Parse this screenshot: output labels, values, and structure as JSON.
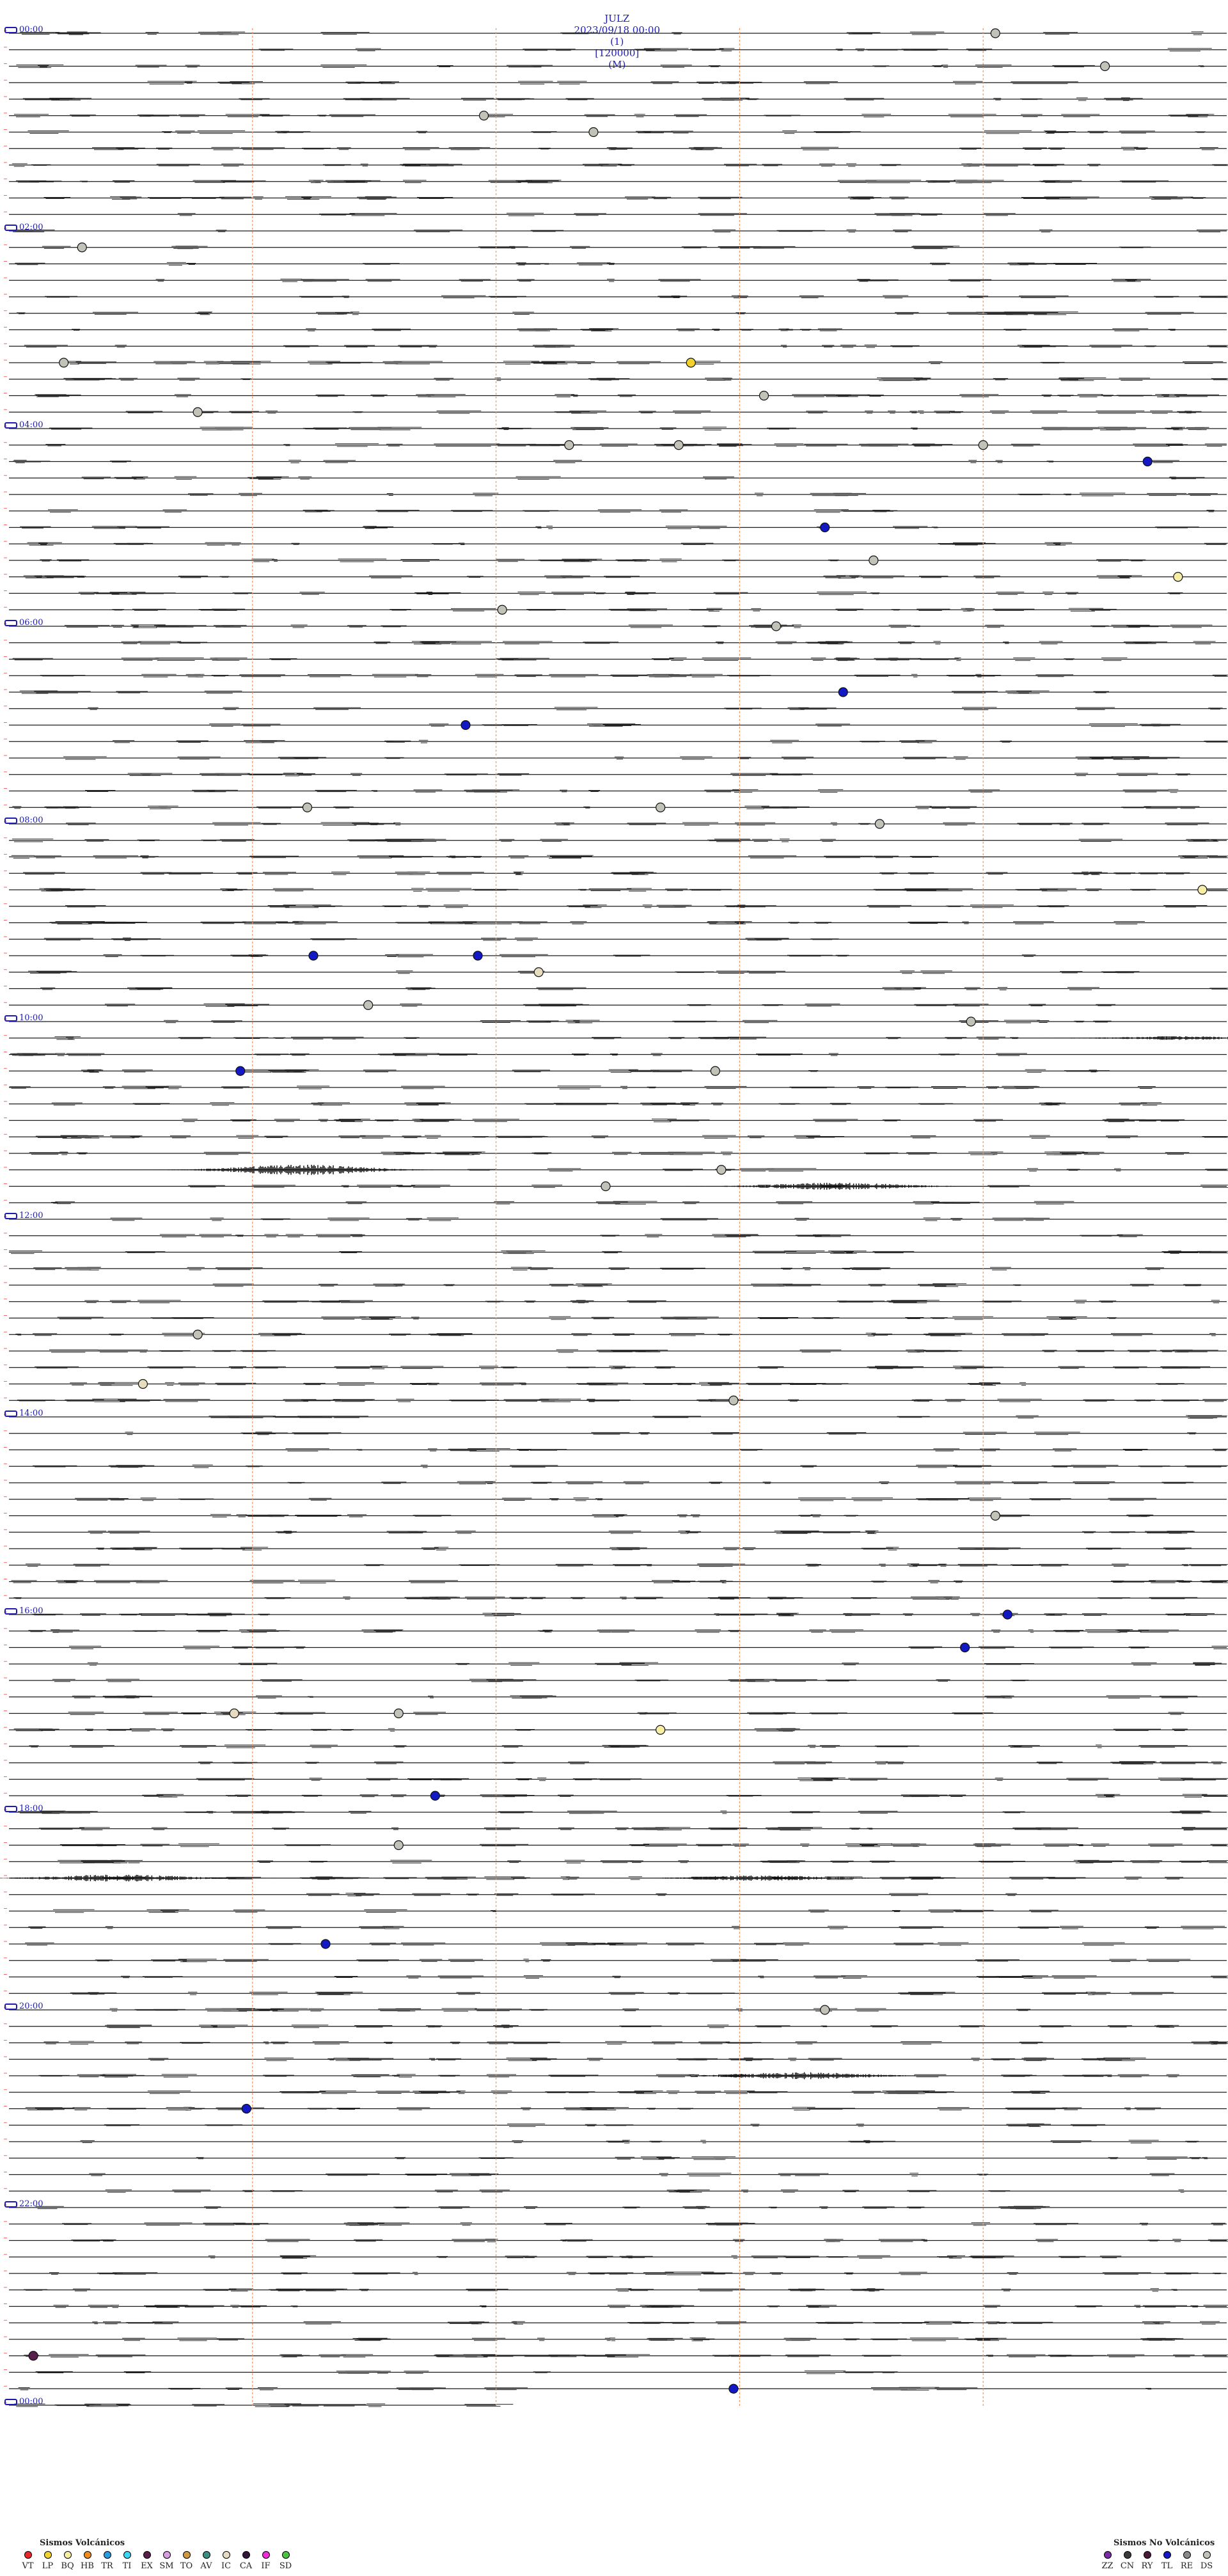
{
  "header": {
    "station": "JULZ",
    "datetime": "2023/09/18 00:00",
    "channel": "(1)",
    "scale": "[120000]",
    "unit": "(M)"
  },
  "chart_data": {
    "type": "helicorder",
    "trace_count": 144,
    "minutes_per_trace": 10,
    "time_labels": [
      {
        "trace": 0,
        "text": "00:00",
        "color": "#1b1bb4"
      },
      {
        "trace": 12,
        "text": "02:00",
        "color": "#1b1bb4"
      },
      {
        "trace": 24,
        "text": "04:00",
        "color": "#1b1bb4"
      },
      {
        "trace": 36,
        "text": "06:00",
        "color": "#1b1bb4"
      },
      {
        "trace": 48,
        "text": "08:00",
        "color": "#1b1bb4"
      },
      {
        "trace": 60,
        "text": "10:00",
        "color": "#1b1bb4"
      },
      {
        "trace": 72,
        "text": "12:00",
        "color": "#1b1bb4"
      },
      {
        "trace": 84,
        "text": "14:00",
        "color": "#1b1bb4"
      },
      {
        "trace": 96,
        "text": "16:00",
        "color": "#1b1bb4"
      },
      {
        "trace": 108,
        "text": "18:00",
        "color": "#1b1bb4"
      },
      {
        "trace": 120,
        "text": "20:00",
        "color": "#1b1bb4"
      },
      {
        "trace": 132,
        "text": "22:00",
        "color": "#1b1bb4"
      },
      {
        "trace": 144,
        "text": "00:00",
        "color": "#1b1bb4"
      }
    ],
    "minute_markers": [
      2,
      4,
      6,
      8
    ],
    "bursts": [
      {
        "trace": 69,
        "minute": 2.4,
        "amplitude": 6
      },
      {
        "trace": 70,
        "minute": 6.8,
        "amplitude": 4
      },
      {
        "trace": 112,
        "minute": 0.9,
        "amplitude": 4
      },
      {
        "trace": 112,
        "minute": 6.2,
        "amplitude": 3
      },
      {
        "trace": 124,
        "minute": 6.5,
        "amplitude": 4
      },
      {
        "trace": 61,
        "minute": 9.6,
        "amplitude": 2
      }
    ],
    "events": [
      {
        "trace": 0,
        "minute": 8.1,
        "class": "DS"
      },
      {
        "trace": 2,
        "minute": 9.0,
        "class": "DS"
      },
      {
        "trace": 5,
        "minute": 3.9,
        "class": "DS"
      },
      {
        "trace": 6,
        "minute": 4.8,
        "class": "DS"
      },
      {
        "trace": 13,
        "minute": 0.6,
        "class": "DS"
      },
      {
        "trace": 20,
        "minute": 0.45,
        "class": "DS"
      },
      {
        "trace": 20,
        "minute": 5.6,
        "class": "LP"
      },
      {
        "trace": 22,
        "minute": 6.2,
        "class": "DS"
      },
      {
        "trace": 23,
        "minute": 1.55,
        "class": "DS"
      },
      {
        "trace": 25,
        "minute": 4.6,
        "class": "DS"
      },
      {
        "trace": 25,
        "minute": 5.5,
        "class": "DS"
      },
      {
        "trace": 25,
        "minute": 8.0,
        "class": "DS"
      },
      {
        "trace": 26,
        "minute": 9.35,
        "class": "TL"
      },
      {
        "trace": 30,
        "minute": 6.7,
        "class": "TL"
      },
      {
        "trace": 32,
        "minute": 7.1,
        "class": "DS"
      },
      {
        "trace": 33,
        "minute": 9.6,
        "class": "BQ"
      },
      {
        "trace": 35,
        "minute": 4.05,
        "class": "DS"
      },
      {
        "trace": 36,
        "minute": 6.3,
        "class": "DS"
      },
      {
        "trace": 40,
        "minute": 6.85,
        "class": "TL"
      },
      {
        "trace": 42,
        "minute": 3.75,
        "class": "TL"
      },
      {
        "trace": 47,
        "minute": 2.45,
        "class": "DS"
      },
      {
        "trace": 47,
        "minute": 5.35,
        "class": "DS"
      },
      {
        "trace": 48,
        "minute": 7.15,
        "class": "DS"
      },
      {
        "trace": 52,
        "minute": 9.8,
        "class": "BQ"
      },
      {
        "trace": 56,
        "minute": 2.5,
        "class": "TL"
      },
      {
        "trace": 56,
        "minute": 3.85,
        "class": "TL"
      },
      {
        "trace": 57,
        "minute": 4.35,
        "class": "IC"
      },
      {
        "trace": 59,
        "minute": 2.95,
        "class": "DS"
      },
      {
        "trace": 60,
        "minute": 7.9,
        "class": "DS"
      },
      {
        "trace": 63,
        "minute": 1.9,
        "class": "TL"
      },
      {
        "trace": 63,
        "minute": 5.8,
        "class": "DS"
      },
      {
        "trace": 69,
        "minute": 5.85,
        "class": "DS"
      },
      {
        "trace": 70,
        "minute": 4.9,
        "class": "DS"
      },
      {
        "trace": 79,
        "minute": 1.55,
        "class": "DS"
      },
      {
        "trace": 82,
        "minute": 1.1,
        "class": "IC"
      },
      {
        "trace": 83,
        "minute": 5.95,
        "class": "DS"
      },
      {
        "trace": 90,
        "minute": 8.1,
        "class": "DS"
      },
      {
        "trace": 96,
        "minute": 8.2,
        "class": "TL"
      },
      {
        "trace": 98,
        "minute": 7.85,
        "class": "TL"
      },
      {
        "trace": 102,
        "minute": 1.85,
        "class": "IC"
      },
      {
        "trace": 102,
        "minute": 3.2,
        "class": "DS"
      },
      {
        "trace": 103,
        "minute": 5.35,
        "class": "BQ"
      },
      {
        "trace": 107,
        "minute": 3.5,
        "class": "TL"
      },
      {
        "trace": 110,
        "minute": 3.2,
        "class": "DS"
      },
      {
        "trace": 116,
        "minute": 2.6,
        "class": "TL"
      },
      {
        "trace": 120,
        "minute": 6.7,
        "class": "DS"
      },
      {
        "trace": 126,
        "minute": 1.95,
        "class": "TL"
      },
      {
        "trace": 141,
        "minute": 0.2,
        "class": "EX"
      },
      {
        "trace": 143,
        "minute": 5.95,
        "class": "TL"
      }
    ]
  },
  "legend_volcanic": {
    "title": "Sismos Volcánicos",
    "items": [
      {
        "label": "VT",
        "color": "#e8262a"
      },
      {
        "label": "LP",
        "color": "#f2d22d"
      },
      {
        "label": "BQ",
        "color": "#f7eea6"
      },
      {
        "label": "HB",
        "color": "#f08d1d"
      },
      {
        "label": "TR",
        "color": "#2a9de0"
      },
      {
        "label": "TI",
        "color": "#3ad6f5"
      },
      {
        "label": "EX",
        "color": "#5a1e4c"
      },
      {
        "label": "SM",
        "color": "#d99ee2"
      },
      {
        "label": "TO",
        "color": "#cf9a3f"
      },
      {
        "label": "AV",
        "color": "#3a8e83"
      },
      {
        "label": "IC",
        "color": "#e6dcc0"
      },
      {
        "label": "CA",
        "color": "#31143a"
      },
      {
        "label": "IF",
        "color": "#ee2bd6"
      },
      {
        "label": "SD",
        "color": "#4ec142"
      }
    ]
  },
  "legend_nonvolcanic": {
    "title": "Sismos No Volcánicos",
    "items": [
      {
        "label": "ZZ",
        "color": "#7a2aa3"
      },
      {
        "label": "CN",
        "color": "#3a3a3a"
      },
      {
        "label": "RY",
        "color": "#4a1a3a"
      },
      {
        "label": "TL",
        "color": "#1219c4"
      },
      {
        "label": "RE",
        "color": "#8a8a8a"
      },
      {
        "label": "DS",
        "color": "#c2c2b8"
      }
    ]
  }
}
